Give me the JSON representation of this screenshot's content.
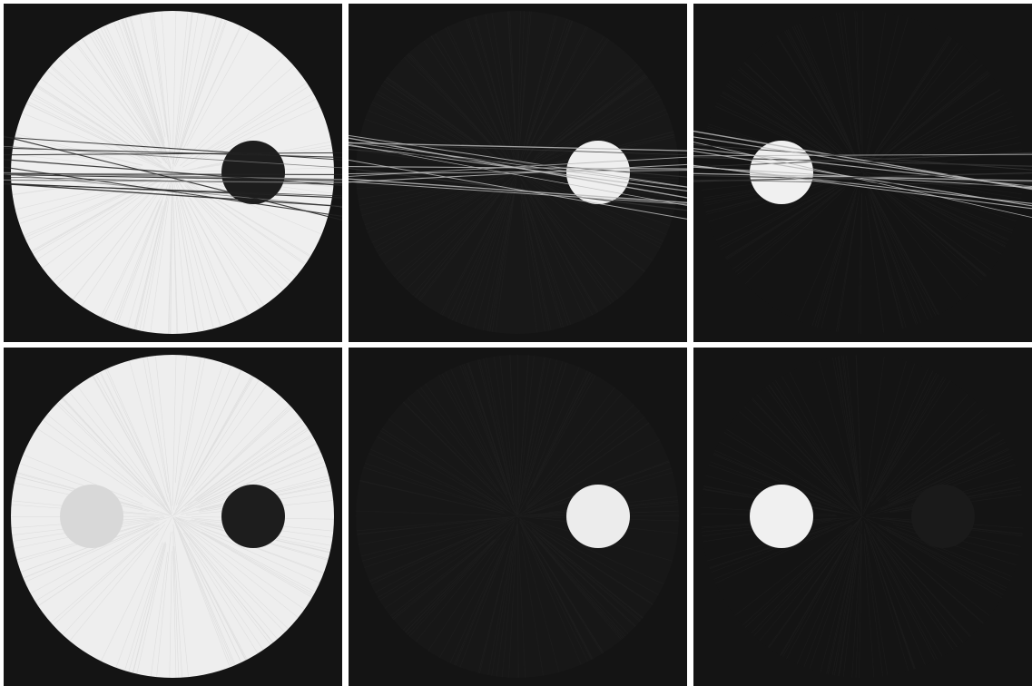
{
  "figure": {
    "rows": [
      {
        "panels": [
          {
            "id": "p-0-0",
            "background": "#141414",
            "disk_fill": "#efefef",
            "insert_left_fill": null,
            "insert_right_fill": "#1d1d1d",
            "streaks": true,
            "streak_color_dark": true
          },
          {
            "id": "p-0-1",
            "background": "#141414",
            "disk_fill": "#181818",
            "insert_left_fill": null,
            "insert_right_fill": "#efefef",
            "streaks": true,
            "streak_color_dark": false
          },
          {
            "id": "p-0-2",
            "background": "#141414",
            "disk_fill": "#141414",
            "insert_left_fill": "#f0f0f0",
            "insert_right_fill": null,
            "streaks": true,
            "streak_color_dark": false
          }
        ]
      },
      {
        "panels": [
          {
            "id": "p-1-0",
            "background": "#141414",
            "disk_fill": "#eeeeee",
            "insert_left_fill": "#d8d8d8",
            "insert_right_fill": "#1d1d1d",
            "streaks": false,
            "streak_color_dark": true
          },
          {
            "id": "p-1-1",
            "background": "#141414",
            "disk_fill": "#171717",
            "insert_left_fill": null,
            "insert_right_fill": "#ececec",
            "streaks": false,
            "streak_color_dark": false
          },
          {
            "id": "p-1-2",
            "background": "#141414",
            "disk_fill": "#141414",
            "insert_left_fill": "#f0f0f0",
            "insert_right_fill": "#1a1a1a",
            "streaks": false,
            "streak_color_dark": false
          }
        ]
      }
    ]
  }
}
